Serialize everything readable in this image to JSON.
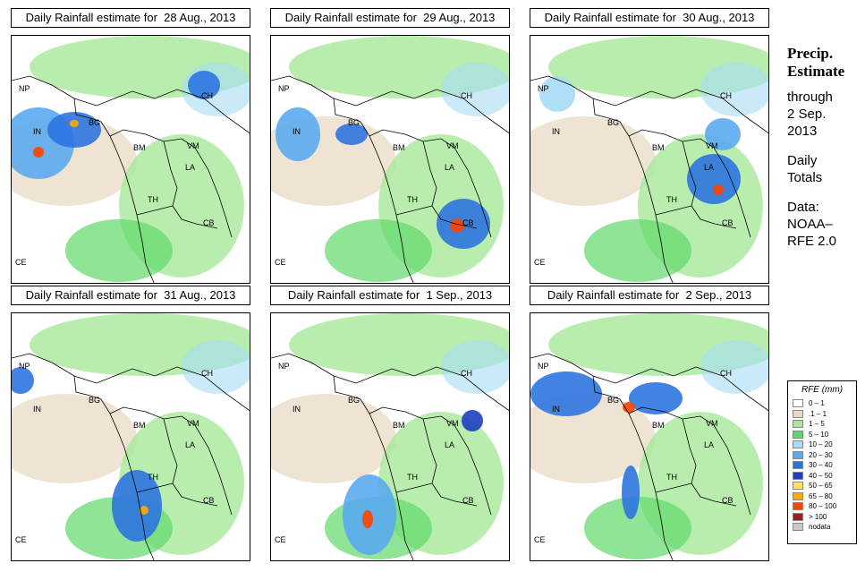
{
  "panels": [
    {
      "title": "Daily Rainfall estimate for  28 Aug., 2013",
      "col": 0,
      "row": 0
    },
    {
      "title": "Daily Rainfall estimate for  29 Aug., 2013",
      "col": 1,
      "row": 0
    },
    {
      "title": "Daily Rainfall estimate for  30 Aug., 2013",
      "col": 2,
      "row": 0
    },
    {
      "title": "Daily Rainfall estimate for  31 Aug., 2013",
      "col": 0,
      "row": 1
    },
    {
      "title": "Daily Rainfall estimate for  1 Sep., 2013",
      "col": 1,
      "row": 1
    },
    {
      "title": "Daily Rainfall estimate for  2 Sep., 2013",
      "col": 2,
      "row": 1
    }
  ],
  "map_labels": [
    "NP",
    "CH",
    "IN",
    "BG",
    "BM",
    "VM",
    "LA",
    "TH",
    "CB",
    "CE"
  ],
  "sidebar": {
    "title_line1": "Precip.",
    "title_line2": "Estimate",
    "through": "through",
    "date_line1": "2 Sep.",
    "date_line2": "2013",
    "daily_line1": "Daily",
    "daily_line2": "Totals",
    "data_line1": "Data:",
    "data_line2": "NOAA–",
    "data_line3": "RFE 2.0"
  },
  "legend": {
    "title": "RFE (mm)",
    "items": [
      {
        "label": "0 – 1",
        "color": "#ffffff"
      },
      {
        "label": ".1 – 1",
        "color": "#e8d9c0"
      },
      {
        "label": "1 – 5",
        "color": "#a8e89a"
      },
      {
        "label": "5 – 10",
        "color": "#5fd86a"
      },
      {
        "label": "10 – 20",
        "color": "#a6dcf5"
      },
      {
        "label": "20 – 30",
        "color": "#5aaaf0"
      },
      {
        "label": "30 – 40",
        "color": "#2e74e0"
      },
      {
        "label": "40 – 50",
        "color": "#1c3fbf"
      },
      {
        "label": "50 – 65",
        "color": "#ffe066"
      },
      {
        "label": "65 – 80",
        "color": "#ffaa00"
      },
      {
        "label": "80 – 100",
        "color": "#ff4400"
      },
      {
        "label": "> 100",
        "color": "#9a1f1f"
      },
      {
        "label": "nodata",
        "color": "#c8c8c8"
      }
    ]
  }
}
